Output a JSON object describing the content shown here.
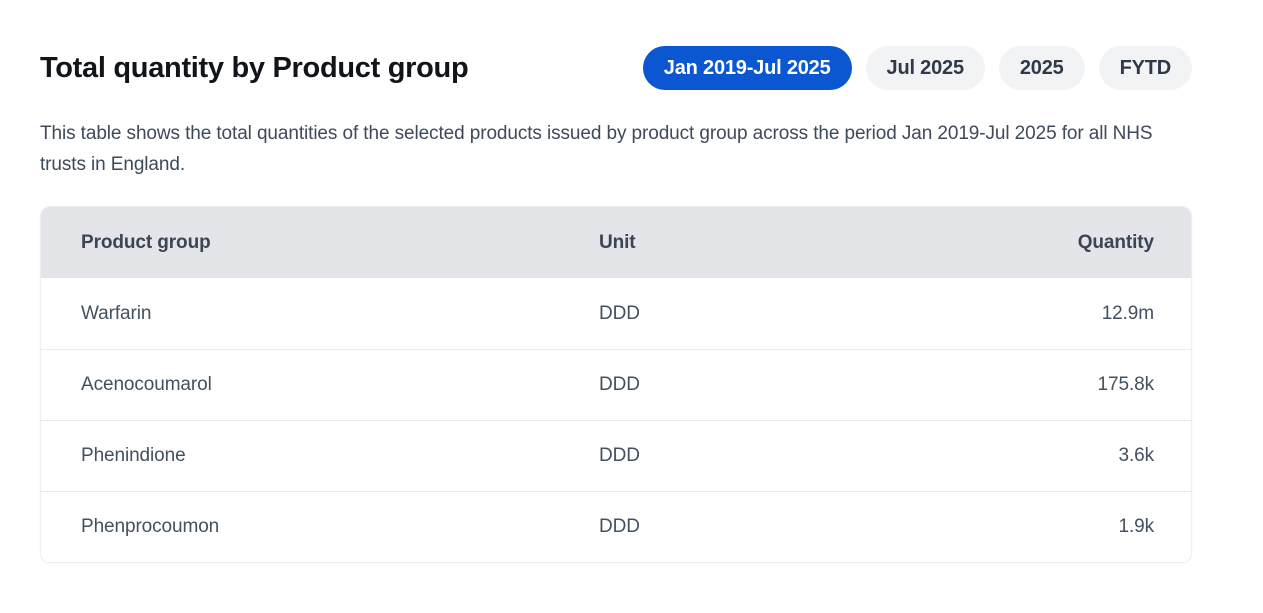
{
  "page": {
    "title": "Total quantity by Product group",
    "description": "This table shows the total quantities of the selected products issued by product group across the period Jan 2019-Jul 2025 for all NHS trusts in England."
  },
  "filters": {
    "options": [
      {
        "label": "Jan 2019-Jul 2025",
        "active": true
      },
      {
        "label": "Jul 2025",
        "active": false
      },
      {
        "label": "2025",
        "active": false
      },
      {
        "label": "FYTD",
        "active": false
      }
    ]
  },
  "colors": {
    "accent_blue": "#0b57d2",
    "pill_inactive_bg": "#f2f3f5",
    "table_header_bg": "#e3e5e9",
    "body_text": "#3e4a59",
    "row_divider": "#e9ebee"
  },
  "table": {
    "columns": {
      "product_group": "Product group",
      "unit": "Unit",
      "quantity": "Quantity"
    },
    "rows": [
      {
        "product_group": "Warfarin",
        "unit": "DDD",
        "quantity": "12.9m"
      },
      {
        "product_group": "Acenocoumarol",
        "unit": "DDD",
        "quantity": "175.8k"
      },
      {
        "product_group": "Phenindione",
        "unit": "DDD",
        "quantity": "3.6k"
      },
      {
        "product_group": "Phenprocoumon",
        "unit": "DDD",
        "quantity": "1.9k"
      }
    ]
  }
}
